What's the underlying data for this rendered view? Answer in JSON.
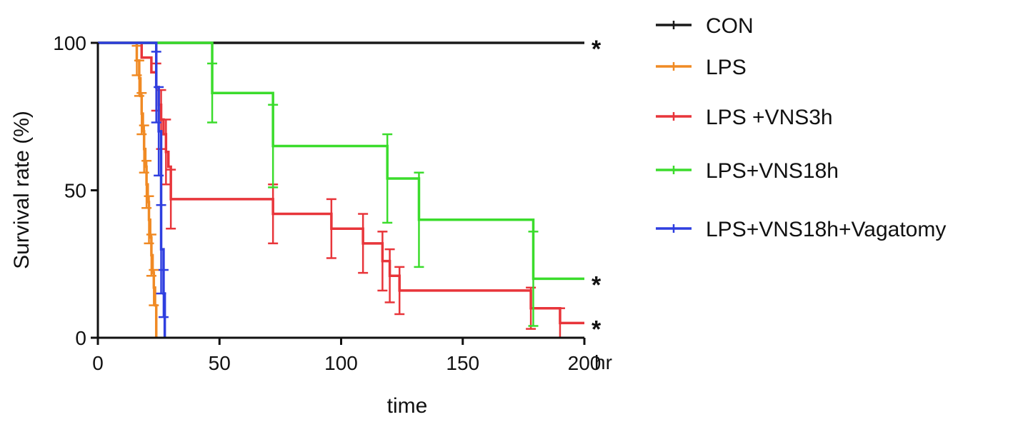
{
  "chart_data": {
    "type": "line",
    "subtype": "kaplan-meier survival curve with error bars",
    "xlabel": "time",
    "x_unit": "hr",
    "ylabel": "Survival rate (%)",
    "xlim": [
      0,
      200
    ],
    "ylim": [
      0,
      100
    ],
    "x_ticks": [
      0,
      50,
      100,
      150,
      200
    ],
    "y_ticks": [
      0,
      50,
      100
    ],
    "grid": false,
    "legend_position": "right",
    "significance_marker": "*",
    "series": [
      {
        "name": "CON",
        "color": "#1a1a1a",
        "steps": [
          [
            0,
            100
          ],
          [
            200,
            100
          ]
        ],
        "error_bars": [],
        "significance": "*"
      },
      {
        "name": "LPS",
        "color": "#f08a24",
        "steps": [
          [
            0,
            100
          ],
          [
            16,
            94
          ],
          [
            17,
            88
          ],
          [
            17.5,
            82
          ],
          [
            18,
            76
          ],
          [
            18.5,
            70
          ],
          [
            19,
            64
          ],
          [
            19.5,
            58
          ],
          [
            20,
            52
          ],
          [
            20.5,
            46
          ],
          [
            21,
            40
          ],
          [
            21.5,
            34
          ],
          [
            22,
            28
          ],
          [
            22.5,
            22
          ],
          [
            23,
            17
          ],
          [
            23.5,
            11
          ],
          [
            24,
            0
          ]
        ],
        "error_bars": [
          [
            16,
            94,
            5
          ],
          [
            17,
            88,
            6
          ],
          [
            18,
            76,
            7
          ],
          [
            19,
            64,
            8
          ],
          [
            20,
            52,
            8
          ],
          [
            21,
            40,
            8
          ],
          [
            22,
            28,
            7
          ],
          [
            23,
            17,
            6
          ]
        ],
        "significance": ""
      },
      {
        "name": "LPS +VNS3h",
        "color": "#e8353a",
        "steps": [
          [
            0,
            100
          ],
          [
            18,
            95
          ],
          [
            22,
            90
          ],
          [
            24,
            85
          ],
          [
            25,
            79
          ],
          [
            26,
            74
          ],
          [
            27,
            69
          ],
          [
            28,
            63
          ],
          [
            29,
            58
          ],
          [
            30,
            47
          ],
          [
            72,
            42
          ],
          [
            96,
            37
          ],
          [
            109,
            32
          ],
          [
            117,
            26
          ],
          [
            120,
            21
          ],
          [
            124,
            16
          ],
          [
            178,
            10
          ],
          [
            190,
            5
          ],
          [
            200,
            5
          ]
        ],
        "error_bars": [
          [
            24,
            85,
            8
          ],
          [
            26,
            74,
            10
          ],
          [
            28,
            63,
            11
          ],
          [
            30,
            47,
            10
          ],
          [
            72,
            42,
            10
          ],
          [
            96,
            37,
            10
          ],
          [
            109,
            32,
            10
          ],
          [
            117,
            26,
            10
          ],
          [
            120,
            21,
            9
          ],
          [
            124,
            16,
            8
          ],
          [
            178,
            10,
            7
          ],
          [
            190,
            5,
            5
          ]
        ],
        "significance": "*"
      },
      {
        "name": "LPS+VNS18h",
        "color": "#3bdc2c",
        "steps": [
          [
            0,
            100
          ],
          [
            47,
            83
          ],
          [
            72,
            65
          ],
          [
            119,
            54
          ],
          [
            132,
            40
          ],
          [
            179,
            20
          ],
          [
            200,
            20
          ]
        ],
        "error_bars": [
          [
            47,
            83,
            10
          ],
          [
            72,
            65,
            14
          ],
          [
            119,
            54,
            15
          ],
          [
            132,
            40,
            16
          ],
          [
            179,
            20,
            16
          ]
        ],
        "significance": "*"
      },
      {
        "name": "LPS+VNS18h+Vagatomy",
        "color": "#2f3fe0",
        "steps": [
          [
            0,
            100
          ],
          [
            24,
            85
          ],
          [
            25,
            70
          ],
          [
            26,
            30
          ],
          [
            27,
            15
          ],
          [
            27.5,
            0
          ]
        ],
        "error_bars": [
          [
            24,
            85,
            12
          ],
          [
            25,
            70,
            15
          ],
          [
            26,
            30,
            15
          ],
          [
            27,
            15,
            8
          ]
        ],
        "significance": ""
      }
    ]
  }
}
